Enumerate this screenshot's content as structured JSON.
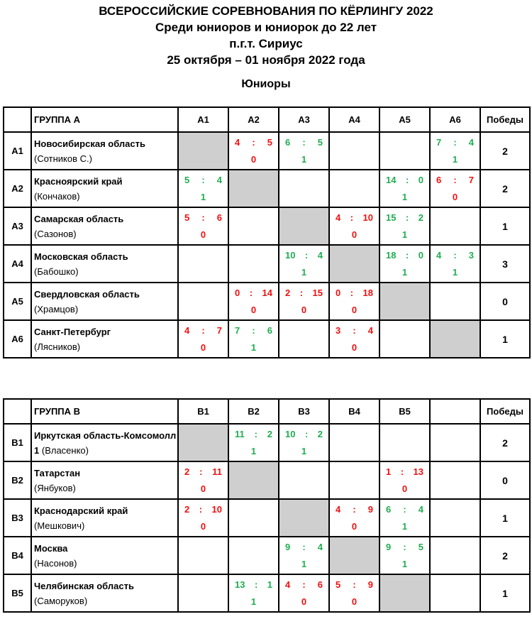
{
  "header": {
    "line1": "ВСЕРОССИЙСКИЕ СОРЕВНОВАНИЯ ПО КЁРЛИНГУ 2022",
    "line2": "Среди юниоров и юниорок до 22 лет",
    "line3": "п.г.т. Сириус",
    "line4": "25 октября – 01 ноября 2022 года"
  },
  "section": "Юниоры",
  "groups": [
    {
      "name": "ГРУППА А",
      "columns": [
        "А1",
        "А2",
        "А3",
        "А4",
        "А5",
        "А6"
      ],
      "wins_label": "Победы",
      "rows": [
        {
          "code": "А1",
          "team": "Новосибирская область",
          "coach": "(Сотников С.)",
          "wins": "2",
          "cells": [
            "X",
            {
              "a": "4",
              "b": "5",
              "p": "0"
            },
            {
              "a": "6",
              "b": "5",
              "p": "1"
            },
            null,
            null,
            {
              "a": "7",
              "b": "4",
              "p": "1"
            }
          ]
        },
        {
          "code": "А2",
          "team": "Красноярский край",
          "coach": "(Кончаков)",
          "wins": "2",
          "cells": [
            {
              "a": "5",
              "b": "4",
              "p": "1"
            },
            "X",
            null,
            null,
            {
              "a": "14",
              "b": "0",
              "p": "1"
            },
            {
              "a": "6",
              "b": "7",
              "p": "0"
            }
          ]
        },
        {
          "code": "А3",
          "team": "Самарская область",
          "coach": "(Сазонов)",
          "wins": "1",
          "cells": [
            {
              "a": "5",
              "b": "6",
              "p": "0"
            },
            null,
            "X",
            {
              "a": "4",
              "b": "10",
              "p": "0"
            },
            {
              "a": "15",
              "b": "2",
              "p": "1"
            },
            null
          ]
        },
        {
          "code": "А4",
          "team": "Московская область",
          "coach": "(Бабошко)",
          "wins": "3",
          "cells": [
            null,
            null,
            {
              "a": "10",
              "b": "4",
              "p": "1"
            },
            "X",
            {
              "a": "18",
              "b": "0",
              "p": "1"
            },
            {
              "a": "4",
              "b": "3",
              "p": "1"
            }
          ]
        },
        {
          "code": "А5",
          "team": "Свердловская область",
          "coach": "(Храмцов)",
          "wins": "0",
          "cells": [
            null,
            {
              "a": "0",
              "b": "14",
              "p": "0"
            },
            {
              "a": "2",
              "b": "15",
              "p": "0"
            },
            {
              "a": "0",
              "b": "18",
              "p": "0"
            },
            "X",
            null
          ]
        },
        {
          "code": "А6",
          "team": "Санкт-Петербург",
          "coach": "(Лясников)",
          "wins": "1",
          "cells": [
            {
              "a": "4",
              "b": "7",
              "p": "0"
            },
            {
              "a": "7",
              "b": "6",
              "p": "1"
            },
            null,
            {
              "a": "3",
              "b": "4",
              "p": "0"
            },
            null,
            "X"
          ]
        }
      ]
    },
    {
      "name": "ГРУППА В",
      "columns": [
        "В1",
        "В2",
        "В3",
        "В4",
        "В5",
        ""
      ],
      "wins_label": "Победы",
      "rows": [
        {
          "code": "В1",
          "team": "Иркутская область-Комсомолл 1",
          "coach": "(Власенко)",
          "wins": "2",
          "cells": [
            "X",
            {
              "a": "11",
              "b": "2",
              "p": "1"
            },
            {
              "a": "10",
              "b": "2",
              "p": "1"
            },
            null,
            null,
            null
          ]
        },
        {
          "code": "В2",
          "team": "Татарстан",
          "coach": "(Янбуков)",
          "wins": "0",
          "cells": [
            {
              "a": "2",
              "b": "11",
              "p": "0"
            },
            "X",
            null,
            null,
            {
              "a": "1",
              "b": "13",
              "p": "0"
            },
            null
          ]
        },
        {
          "code": "В3",
          "team": "Краснодарский край",
          "coach": "(Мешкович)",
          "wins": "1",
          "cells": [
            {
              "a": "2",
              "b": "10",
              "p": "0"
            },
            null,
            "X",
            {
              "a": "4",
              "b": "9",
              "p": "0"
            },
            {
              "a": "6",
              "b": "4",
              "p": "1"
            },
            null
          ]
        },
        {
          "code": "В4",
          "team": "Москва",
          "coach": "(Насонов)",
          "wins": "2",
          "cells": [
            null,
            null,
            {
              "a": "9",
              "b": "4",
              "p": "1"
            },
            "X",
            {
              "a": "9",
              "b": "5",
              "p": "1"
            },
            null
          ]
        },
        {
          "code": "В5",
          "team": "Челябинская область",
          "coach": "(Саморуков)",
          "wins": "1",
          "cells": [
            null,
            {
              "a": "13",
              "b": "1",
              "p": "1"
            },
            {
              "a": "4",
              "b": "6",
              "p": "0"
            },
            {
              "a": "5",
              "b": "9",
              "p": "0"
            },
            "X",
            null
          ]
        }
      ]
    }
  ]
}
